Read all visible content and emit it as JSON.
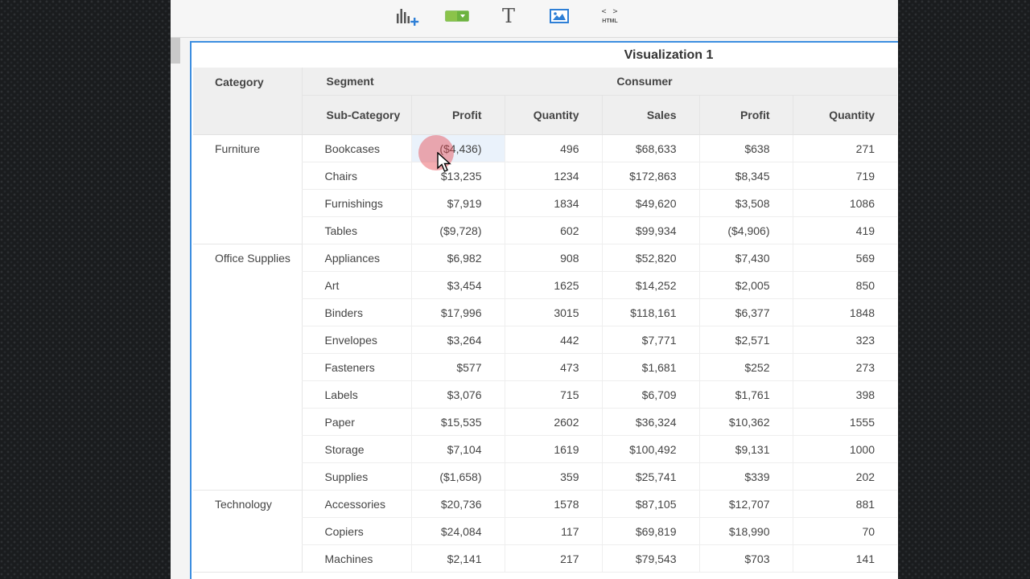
{
  "viz_title": "Visualization 1",
  "toolbar": {
    "html_label": "HTML",
    "colors": {
      "chart_icon": "#555555",
      "plus": "#2e7fd6",
      "toggle": "#6cb33f",
      "image": "#2e7fd6"
    }
  },
  "headers": {
    "category": "Category",
    "segment": "Segment",
    "subcategory": "Sub-Category",
    "consumer": "Consumer",
    "measures": [
      "Profit",
      "Quantity",
      "Sales",
      "Profit",
      "Quantity"
    ]
  },
  "groups": [
    {
      "category": "Furniture",
      "rows": [
        {
          "sub": "Bookcases",
          "v": [
            "($4,436)",
            "496",
            "$68,633",
            "$638",
            "271"
          ]
        },
        {
          "sub": "Chairs",
          "v": [
            "$13,235",
            "1234",
            "$172,863",
            "$8,345",
            "719"
          ]
        },
        {
          "sub": "Furnishings",
          "v": [
            "$7,919",
            "1834",
            "$49,620",
            "$3,508",
            "1086"
          ]
        },
        {
          "sub": "Tables",
          "v": [
            "($9,728)",
            "602",
            "$99,934",
            "($4,906)",
            "419"
          ]
        }
      ]
    },
    {
      "category": "Office Supplies",
      "rows": [
        {
          "sub": "Appliances",
          "v": [
            "$6,982",
            "908",
            "$52,820",
            "$7,430",
            "569"
          ]
        },
        {
          "sub": "Art",
          "v": [
            "$3,454",
            "1625",
            "$14,252",
            "$2,005",
            "850"
          ]
        },
        {
          "sub": "Binders",
          "v": [
            "$17,996",
            "3015",
            "$118,161",
            "$6,377",
            "1848"
          ]
        },
        {
          "sub": "Envelopes",
          "v": [
            "$3,264",
            "442",
            "$7,771",
            "$2,571",
            "323"
          ]
        },
        {
          "sub": "Fasteners",
          "v": [
            "$577",
            "473",
            "$1,681",
            "$252",
            "273"
          ]
        },
        {
          "sub": "Labels",
          "v": [
            "$3,076",
            "715",
            "$6,709",
            "$1,761",
            "398"
          ]
        },
        {
          "sub": "Paper",
          "v": [
            "$15,535",
            "2602",
            "$36,324",
            "$10,362",
            "1555"
          ]
        },
        {
          "sub": "Storage",
          "v": [
            "$7,104",
            "1619",
            "$100,492",
            "$9,131",
            "1000"
          ]
        },
        {
          "sub": "Supplies",
          "v": [
            "($1,658)",
            "359",
            "$25,741",
            "$339",
            "202"
          ]
        }
      ]
    },
    {
      "category": "Technology",
      "rows": [
        {
          "sub": "Accessories",
          "v": [
            "$20,736",
            "1578",
            "$87,105",
            "$12,707",
            "881"
          ]
        },
        {
          "sub": "Copiers",
          "v": [
            "$24,084",
            "117",
            "$69,819",
            "$18,990",
            "70"
          ]
        },
        {
          "sub": "Machines",
          "v": [
            "$2,141",
            "217",
            "$79,543",
            "$703",
            "141"
          ]
        }
      ]
    }
  ],
  "selected": {
    "group": 0,
    "row": 0,
    "col": 0
  }
}
